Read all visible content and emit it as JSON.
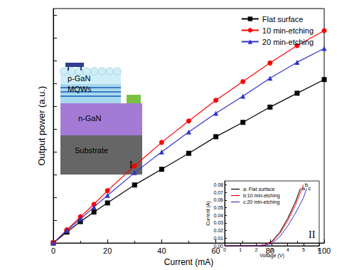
{
  "chart_data": [
    {
      "type": "line",
      "x_label": "Current (mA)",
      "y_label": "Output power (a.u.)",
      "x": [
        0,
        5,
        10,
        15,
        20,
        30,
        40,
        50,
        60,
        70,
        80,
        90,
        100
      ],
      "series": [
        {
          "name": "Flat surface",
          "color": "#000000",
          "marker": "square",
          "values": [
            0,
            0.48,
            0.94,
            1.36,
            1.76,
            2.55,
            3.24,
            3.94,
            4.67,
            5.3,
            5.97,
            6.58,
            7.18
          ]
        },
        {
          "name": "10 min-etching",
          "color": "#ff0000",
          "marker": "circle",
          "values": [
            0,
            0.58,
            1.15,
            1.7,
            2.3,
            3.39,
            4.42,
            5.36,
            6.27,
            7.09,
            7.91,
            8.67,
            9.33
          ]
        },
        {
          "name": "20 min-etching",
          "color": "#3333cc",
          "marker": "triangle",
          "values": [
            0,
            0.55,
            1.06,
            1.58,
            2.09,
            3.09,
            4.0,
            4.88,
            5.7,
            6.45,
            7.24,
            7.94,
            8.55
          ]
        }
      ],
      "xlim": [
        0,
        100
      ],
      "xticks": [
        0,
        20,
        40,
        60,
        80,
        100
      ],
      "ylim": [
        0,
        10.3
      ],
      "yticks": [
        0,
        1,
        2,
        3,
        4,
        5,
        6,
        7,
        8,
        9,
        10
      ],
      "tick_labels": "x",
      "legend": "upper right"
    },
    {
      "type": "line",
      "x_label": "Voltage (V)",
      "y_label": "Current (A)",
      "series": [
        {
          "name": "a: Flat surface",
          "color": "#000000",
          "x": [
            0,
            1,
            2,
            2.5,
            3,
            3.5,
            4,
            4.5,
            4.8
          ],
          "values": [
            0,
            0,
            0,
            0.001,
            0.006,
            0.018,
            0.036,
            0.058,
            0.075
          ]
        },
        {
          "name": "b:10 min-etching",
          "color": "#ff0000",
          "x": [
            0,
            1,
            2,
            2.5,
            3,
            3.5,
            4,
            4.5,
            5
          ],
          "values": [
            0,
            0,
            0,
            0.001,
            0.005,
            0.016,
            0.033,
            0.054,
            0.08
          ]
        },
        {
          "name": "c:20 min-etching",
          "color": "#3333cc",
          "x": [
            0,
            1,
            2,
            2.5,
            3,
            3.5,
            4,
            4.5,
            5,
            5.2
          ],
          "values": [
            0,
            0,
            0,
            0,
            0.003,
            0.012,
            0.026,
            0.043,
            0.063,
            0.075
          ]
        }
      ],
      "xlim": [
        0,
        6
      ],
      "xticks": [
        0,
        1,
        2,
        3,
        4,
        5,
        6
      ],
      "ylim": [
        0,
        0.085
      ],
      "yticks": [
        {
          "value": 0,
          "label": "0.00"
        },
        {
          "value": 0.01,
          "label": "0.01"
        },
        {
          "value": 0.02,
          "label": "0.02"
        },
        {
          "value": 0.03,
          "label": "0.03"
        },
        {
          "value": 0.04,
          "label": "0.04"
        },
        {
          "value": 0.05,
          "label": "0.05"
        },
        {
          "value": 0.06,
          "label": "0.06"
        },
        {
          "value": 0.07,
          "label": "0.07"
        },
        {
          "value": 0.08,
          "label": "0.08"
        }
      ],
      "legend": "upper left",
      "annotations": [
        "a",
        "b",
        "c",
        "II"
      ]
    }
  ],
  "inset_diagram": {
    "layers": [
      "p-GaN",
      "MQWs",
      "n-GaN",
      "Substrate"
    ],
    "label": "I"
  }
}
